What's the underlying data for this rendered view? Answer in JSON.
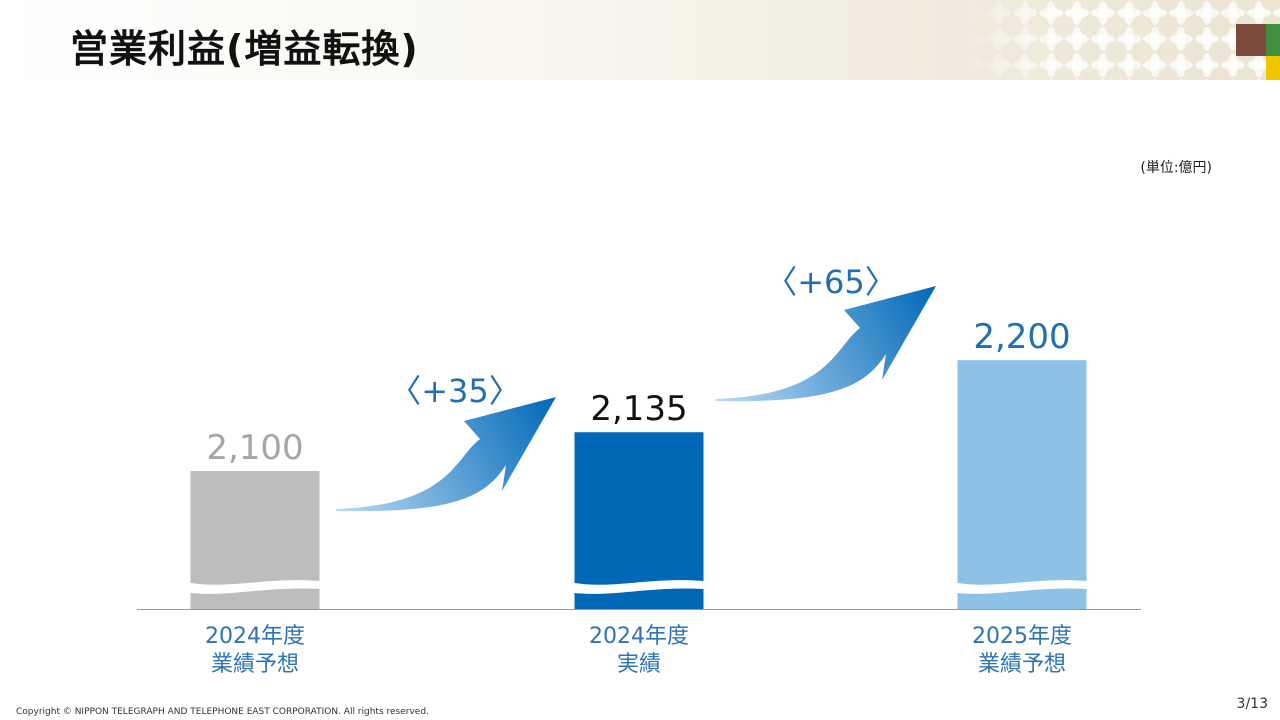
{
  "header": {
    "title": "営業利益(増益転換)"
  },
  "unit_label": "(単位:億円)",
  "footer": {
    "copyright": "Copyright © NIPPON TELEGRAPH AND TELEPHONE EAST CORPORATION. All rights reserved.",
    "page": "3/13"
  },
  "colors": {
    "forecast_2024": "#bdbdbd",
    "actual_2024": "#0068b7",
    "forecast_2025": "#8ec1e6",
    "label_2024_forecast": "#a6a6a6",
    "label_2024_actual": "#111111",
    "label_2025": "#1f6fb2",
    "change_label": "#1f6fb2",
    "category_label": "#2e74b5",
    "arrow_dark": "#0068b7",
    "arrow_light": "#b9daf3"
  },
  "chart_data": {
    "type": "bar",
    "categories": [
      {
        "line1": "2024年度",
        "line2": "業績予想"
      },
      {
        "line1": "2024年度",
        "line2": "実績"
      },
      {
        "line1": "2025年度",
        "line2": "業績予想"
      }
    ],
    "values": [
      2100,
      2135,
      2200
    ],
    "value_labels": [
      "2,100",
      "2,135",
      "2,200"
    ],
    "changes": [
      "〈+35〉",
      "〈+65〉"
    ],
    "axis_break": true,
    "grid": false,
    "legend": "none"
  }
}
